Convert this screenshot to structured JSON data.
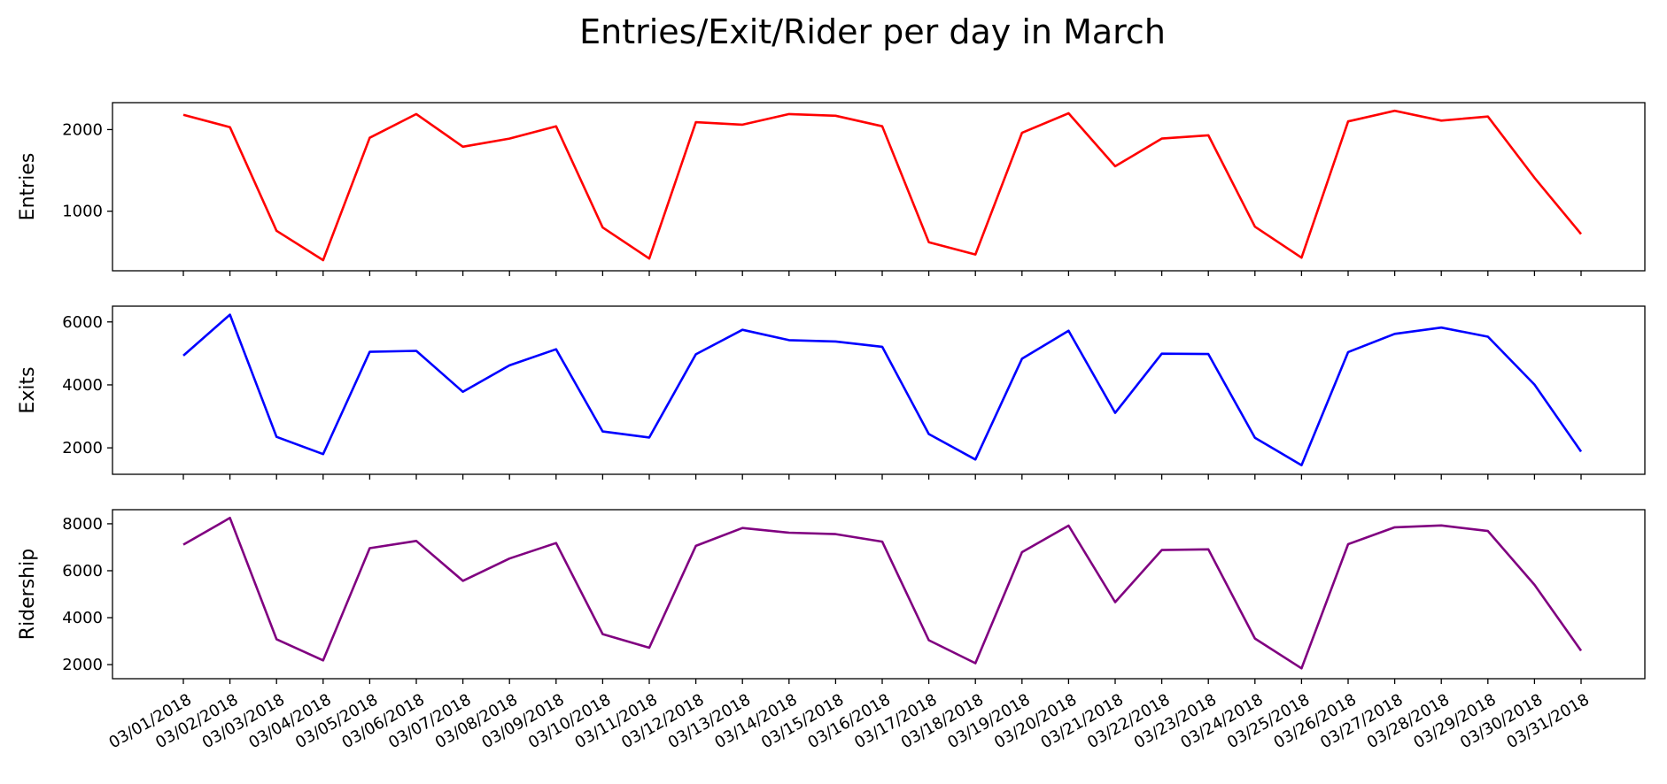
{
  "chart_data": {
    "type": "line",
    "title": "Entries/Exit/Rider per day in March",
    "categories": [
      "03/01/2018",
      "03/02/2018",
      "03/03/2018",
      "03/04/2018",
      "03/05/2018",
      "03/06/2018",
      "03/07/2018",
      "03/08/2018",
      "03/09/2018",
      "03/10/2018",
      "03/11/2018",
      "03/12/2018",
      "03/13/2018",
      "03/14/2018",
      "03/15/2018",
      "03/16/2018",
      "03/17/2018",
      "03/18/2018",
      "03/19/2018",
      "03/20/2018",
      "03/21/2018",
      "03/22/2018",
      "03/23/2018",
      "03/24/2018",
      "03/25/2018",
      "03/26/2018",
      "03/27/2018",
      "03/28/2018",
      "03/29/2018",
      "03/30/2018",
      "03/31/2018"
    ],
    "grid": false,
    "panels": [
      {
        "ylabel": "Entries",
        "color": "#ff0000",
        "ylim": [
          270,
          2330
        ],
        "yticks": [
          1000,
          2000
        ],
        "values": [
          2180,
          2030,
          760,
          400,
          1900,
          2190,
          1790,
          1890,
          2040,
          800,
          420,
          2090,
          2060,
          2190,
          2170,
          2040,
          620,
          470,
          1960,
          2200,
          1550,
          1890,
          1930,
          810,
          430,
          2100,
          2230,
          2110,
          2160,
          1410,
          720
        ]
      },
      {
        "ylabel": "Exits",
        "color": "#0000ff",
        "ylim": [
          1160,
          6500
        ],
        "yticks": [
          2000,
          4000,
          6000
        ],
        "values": [
          4930,
          6230,
          2350,
          1800,
          5050,
          5080,
          3780,
          4620,
          5130,
          2520,
          2330,
          4970,
          5750,
          5420,
          5380,
          5210,
          2440,
          1630,
          4830,
          5720,
          3110,
          4990,
          4980,
          2320,
          1450,
          5040,
          5620,
          5820,
          5530,
          4010,
          1880
        ]
      },
      {
        "ylabel": "Ridership",
        "color": "#800080",
        "ylim": [
          1400,
          8600
        ],
        "yticks": [
          2000,
          4000,
          6000,
          8000
        ],
        "values": [
          7110,
          8250,
          3080,
          2180,
          6960,
          7270,
          5570,
          6520,
          7180,
          3300,
          2720,
          7060,
          7820,
          7620,
          7560,
          7240,
          3040,
          2060,
          6790,
          7920,
          4660,
          6880,
          6910,
          3110,
          1840,
          7130,
          7850,
          7930,
          7690,
          5400,
          2590
        ]
      }
    ]
  }
}
